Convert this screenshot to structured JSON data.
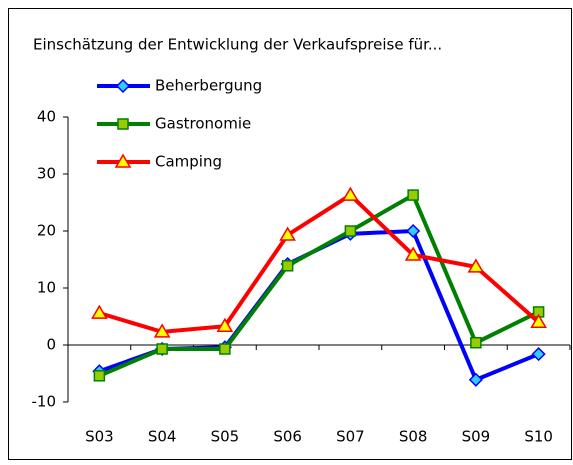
{
  "chart_data": {
    "type": "line",
    "title": "Einschätzung der Entwicklung der Verkaufspreise für...",
    "categories": [
      "S03",
      "S04",
      "S05",
      "S06",
      "S07",
      "S08",
      "S09",
      "S10"
    ],
    "series": [
      {
        "name": "Beherbergung",
        "color": "#0000ff",
        "marker": "diamond",
        "marker_color": "#33ccff",
        "values": [
          -4.6,
          -0.7,
          -0.4,
          14.2,
          19.5,
          20,
          -6.1,
          -1.6
        ]
      },
      {
        "name": "Gastronomie",
        "color": "#008000",
        "marker": "square",
        "marker_color": "#99cc00",
        "values": [
          -5.4,
          -0.7,
          -0.7,
          13.9,
          20,
          26.3,
          0.4,
          5.8
        ]
      },
      {
        "name": "Camping",
        "color": "#ff0000",
        "marker": "triangle",
        "marker_color": "#ffff00",
        "values": [
          5.6,
          2.3,
          3.3,
          19.3,
          26.3,
          15.8,
          13.7,
          4.0
        ]
      }
    ],
    "ylim": [
      -10,
      40
    ],
    "yticks": [
      -10,
      0,
      10,
      20,
      30,
      40
    ],
    "grid": false,
    "legend": "upper left"
  }
}
